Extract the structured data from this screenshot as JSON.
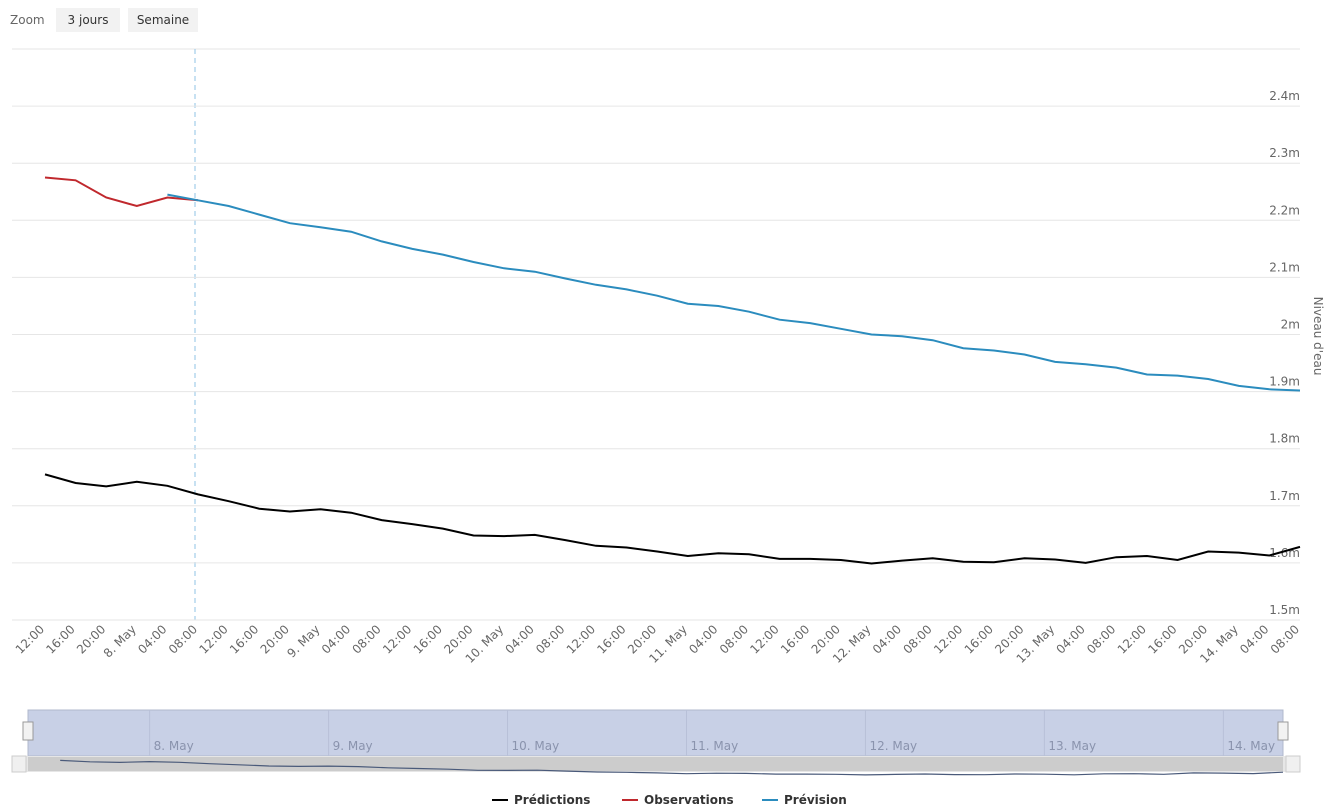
{
  "range_selector": {
    "label": "Zoom",
    "buttons": [
      "3 jours",
      "Semaine"
    ]
  },
  "chart_data": {
    "type": "line",
    "y_axis_title": "Niveau d'eau",
    "categories": [
      "12:00",
      "16:00",
      "20:00",
      "8. May",
      "04:00",
      "08:00",
      "12:00",
      "16:00",
      "20:00",
      "9. May",
      "04:00",
      "08:00",
      "12:00",
      "16:00",
      "20:00",
      "10. May",
      "04:00",
      "08:00",
      "12:00",
      "16:00",
      "20:00",
      "11. May",
      "04:00",
      "08:00",
      "12:00",
      "16:00",
      "20:00",
      "12. May",
      "04:00",
      "08:00",
      "12:00",
      "16:00",
      "20:00",
      "13. May",
      "04:00",
      "08:00",
      "12:00",
      "16:00",
      "20:00",
      "14. May",
      "04:00",
      "08:00"
    ],
    "series": [
      {
        "name": "Prédictions",
        "color": "#000000",
        "values": [
          1.755,
          1.74,
          1.734,
          1.742,
          1.735,
          1.72,
          1.708,
          1.695,
          1.69,
          1.694,
          1.688,
          1.675,
          1.668,
          1.66,
          1.648,
          1.647,
          1.649,
          1.64,
          1.63,
          1.627,
          1.62,
          1.612,
          1.617,
          1.615,
          1.607,
          1.607,
          1.605,
          1.599,
          1.604,
          1.608,
          1.602,
          1.601,
          1.608,
          1.606,
          1.6,
          1.61,
          1.612,
          1.605,
          1.62,
          1.618,
          1.613,
          1.628
        ]
      },
      {
        "name": "Observations",
        "color": "#c0282d",
        "values": [
          2.275,
          2.27,
          2.24,
          2.225,
          2.24,
          2.235,
          null,
          null,
          null,
          null,
          null,
          null,
          null,
          null,
          null,
          null,
          null,
          null,
          null,
          null,
          null,
          null,
          null,
          null,
          null,
          null,
          null,
          null,
          null,
          null,
          null,
          null,
          null,
          null,
          null,
          null,
          null,
          null,
          null,
          null,
          null,
          null
        ]
      },
      {
        "name": "Prévision",
        "color": "#2b8cbe",
        "values": [
          null,
          null,
          null,
          null,
          2.245,
          2.235,
          2.225,
          2.21,
          2.195,
          2.188,
          2.18,
          2.163,
          2.15,
          2.14,
          2.127,
          2.116,
          2.11,
          2.098,
          2.087,
          2.079,
          2.068,
          2.054,
          2.05,
          2.04,
          2.026,
          2.02,
          2.01,
          2.0,
          1.997,
          1.99,
          1.976,
          1.972,
          1.965,
          1.952,
          1.948,
          1.942,
          1.93,
          1.928,
          1.922,
          1.91,
          1.904,
          1.902
        ]
      }
    ],
    "ylim": [
      1.5,
      2.5
    ],
    "yticks": [
      {
        "value": 1.5,
        "label": "1.5m"
      },
      {
        "value": 1.6,
        "label": "1.6m"
      },
      {
        "value": 1.7,
        "label": "1.7m"
      },
      {
        "value": 1.8,
        "label": "1.8m"
      },
      {
        "value": 1.9,
        "label": "1.9m"
      },
      {
        "value": 2.0,
        "label": "2m"
      },
      {
        "value": 2.1,
        "label": "2.1m"
      },
      {
        "value": 2.2,
        "label": "2.2m"
      },
      {
        "value": 2.3,
        "label": "2.3m"
      },
      {
        "value": 2.4,
        "label": "2.4m"
      }
    ],
    "grid": true,
    "legend": "bottom"
  }
}
